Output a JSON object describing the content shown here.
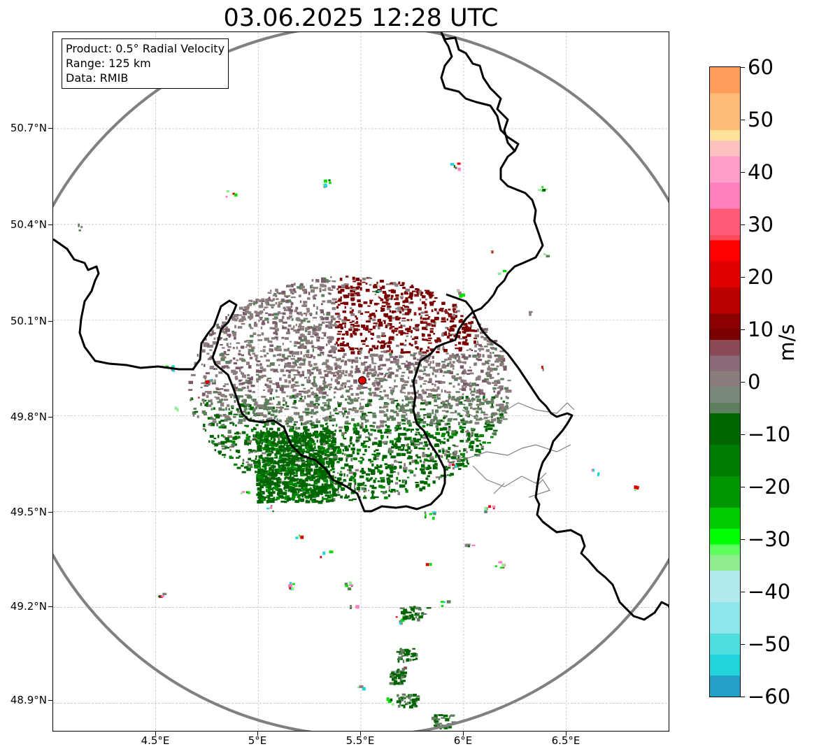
{
  "title": "03.06.2025 12:28 UTC",
  "info_box": {
    "product": "Product: 0.5° Radial Velocity",
    "range": "Range: 125 km",
    "data": "Data: RMIB"
  },
  "map": {
    "type": "radar-velocity-map",
    "lon_range": [
      4.0,
      7.0
    ],
    "lat_range": [
      48.8,
      51.0
    ],
    "radar_site": {
      "lon": 5.505,
      "lat": 49.914
    },
    "range_ring_km": 125,
    "grid": true,
    "x_ticks": [
      4.5,
      5.0,
      5.5,
      6.0,
      6.5
    ],
    "x_tick_labels": [
      "4.5°E",
      "5°E",
      "5.5°E",
      "6°E",
      "6.5°E"
    ],
    "y_ticks": [
      48.9,
      49.2,
      49.5,
      49.8,
      50.1,
      50.4,
      50.7
    ],
    "y_tick_labels": [
      "48.9°N",
      "49.2°N",
      "49.5°N",
      "49.8°N",
      "50.1°N",
      "50.4°N",
      "50.7°N"
    ]
  },
  "colorbar": {
    "label": "m/s",
    "min": -60,
    "max": 60,
    "ticks": [
      60,
      50,
      40,
      30,
      20,
      10,
      0,
      -10,
      -20,
      -30,
      -40,
      -50,
      -60
    ],
    "tick_labels": [
      "60",
      "50",
      "40",
      "30",
      "20",
      "10",
      "0",
      "−10",
      "−20",
      "−30",
      "−40",
      "−50",
      "−60"
    ],
    "colors": {
      "deep_blue": "#1f77b4",
      "cyan": "#22d3d9",
      "light_cyan": "#b2ebef",
      "light_green": "#90ee90",
      "green": "#00e000",
      "dark_green": "#006400",
      "grey_green": "#5d7f5d",
      "grey": "#8c7d7d",
      "dark_red": "#7a0000",
      "red": "#ff0000",
      "pink": "#ff7fbf",
      "orange": "#ff9c5a"
    }
  }
}
